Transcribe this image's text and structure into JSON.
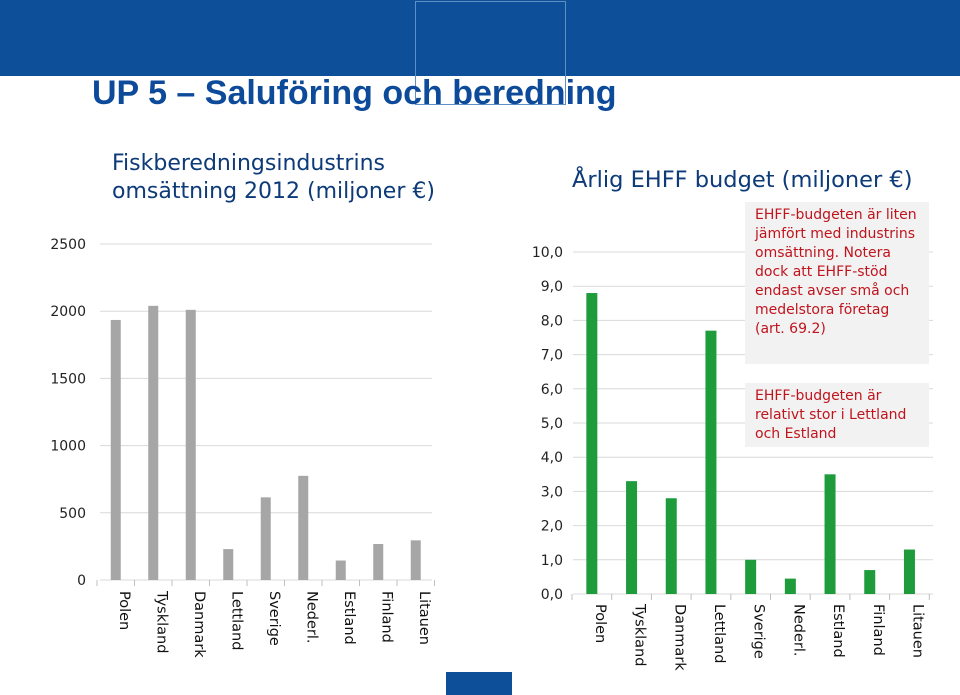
{
  "page": {
    "title": "UP 5 – Saluföring och beredning",
    "colors": {
      "header": "#0e4f99",
      "title": "#0d4a9a",
      "note_text": "#c0141d"
    }
  },
  "notes": [
    "EHFF-budgeten är liten jämfört med industrins omsättning. Notera dock att EHFF-stöd endast avser små och medelstora företag (art. 69.2)",
    "EHFF-budgeten är relativt stor i Lettland och Estland"
  ],
  "chart_data": [
    {
      "type": "bar",
      "title_lines": [
        "Fiskberedningsindustrins",
        "omsättning 2012 (miljoner €)"
      ],
      "categories": [
        "Polen",
        "Tyskland",
        "Danmark",
        "Lettland",
        "Sverige",
        "Nederl.",
        "Estland",
        "Finland",
        "Litauen"
      ],
      "values": [
        1935,
        2040,
        2010,
        230,
        615,
        775,
        145,
        268,
        295
      ],
      "ylim": [
        0,
        2500
      ],
      "y_ticks": [
        0,
        500,
        1000,
        1500,
        2000,
        2500
      ],
      "y_tick_labels": [
        "0",
        "500",
        "1000",
        "1500",
        "2000",
        "2500"
      ],
      "color": "#a6a6a6",
      "grid": true
    },
    {
      "type": "bar",
      "title": "Årlig EHFF budget (miljoner €)",
      "categories": [
        "Polen",
        "Tyskland",
        "Danmark",
        "Lettland",
        "Sverige",
        "Nederl.",
        "Estland",
        "Finland",
        "Litauen"
      ],
      "values": [
        8.8,
        3.3,
        2.8,
        7.7,
        1.0,
        0.45,
        3.5,
        0.7,
        1.3
      ],
      "ylim": [
        0,
        10
      ],
      "y_ticks": [
        0,
        1,
        2,
        3,
        4,
        5,
        6,
        7,
        8,
        9,
        10
      ],
      "y_tick_labels": [
        "0,0",
        "1,0",
        "2,0",
        "3,0",
        "4,0",
        "5,0",
        "6,0",
        "7,0",
        "8,0",
        "9,0",
        "10,0"
      ],
      "color": "#1e9c3c",
      "grid": true
    }
  ]
}
